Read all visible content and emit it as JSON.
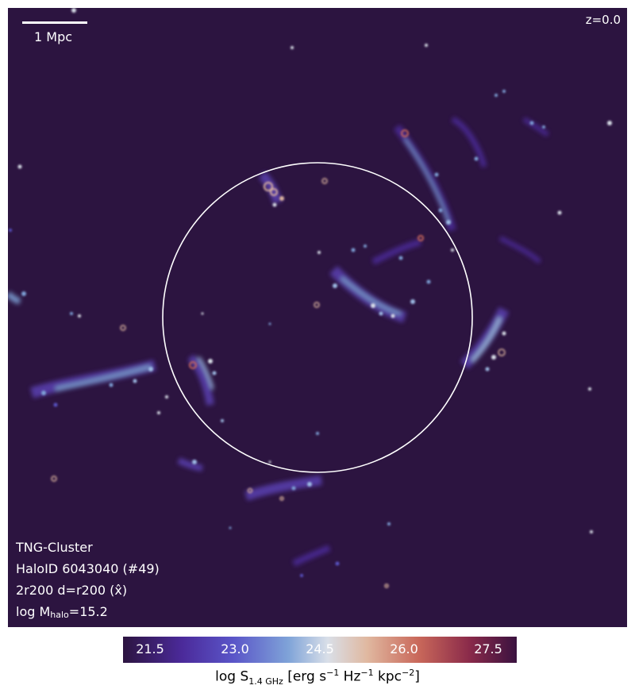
{
  "redshift": "z=0.0",
  "scale_label": "1 Mpc",
  "info": {
    "line1": "TNG-Cluster",
    "line2": "HaloID 6043040 (#49)",
    "line3": "2r200 d=r200 (x̂)",
    "line4_prefix": "log M",
    "line4_sub": "halo",
    "line4_value": "=15.2"
  },
  "colorbar": {
    "ticks": [
      "21.5",
      "23.0",
      "24.5",
      "26.0",
      "27.5"
    ],
    "label_prefix": "log S",
    "label_sub": "1.4 GHz",
    "label_rest_a": " [erg s",
    "label_exp1": "−1",
    "label_rest_b": " Hz",
    "label_exp2": "−1",
    "label_rest_c": " kpc",
    "label_exp3": "−2",
    "label_rest_d": "]"
  },
  "colors": {
    "background": "#2c1440",
    "circle": "#ffffff",
    "filament_blue": "#7fa3d8",
    "filament_purple": "#5a40b0",
    "hotspot": "#e0b8a0"
  }
}
